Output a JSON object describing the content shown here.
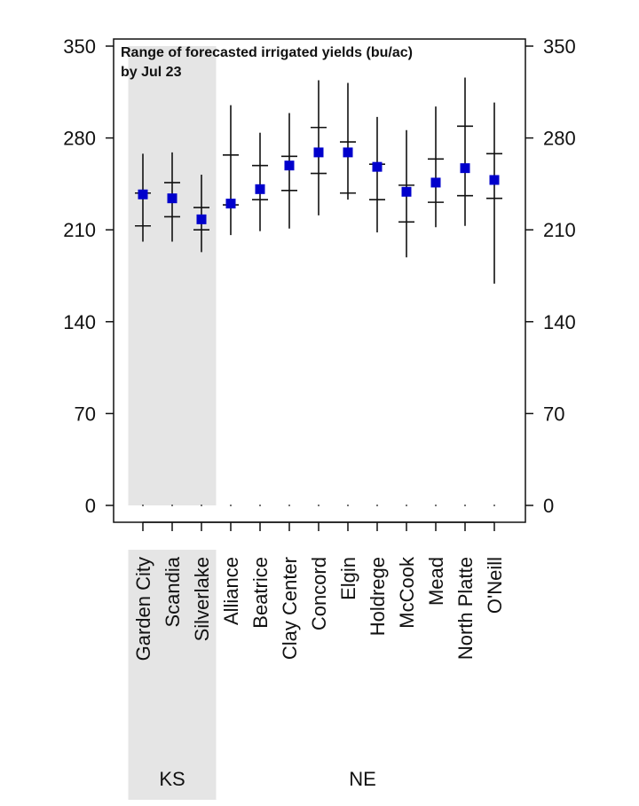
{
  "chart_data": {
    "type": "range",
    "title": "Range of forecasted irrigated yields (bu/ac)\nby Jul 23",
    "ylim": [
      0,
      350
    ],
    "yticks": [
      0,
      70,
      140,
      210,
      280,
      350
    ],
    "categories": [
      "Garden City",
      "Scandia",
      "Silverlake",
      "Alliance",
      "Beatrice",
      "Clay Center",
      "Concord",
      "Elgin",
      "Holdrege",
      "McCook",
      "Mead",
      "North Platte",
      "O'Neill"
    ],
    "groups": [
      {
        "name": "KS",
        "categories": [
          "Garden City",
          "Scandia",
          "Silverlake"
        ],
        "shaded": true
      },
      {
        "name": "NE",
        "categories": [
          "Alliance",
          "Beatrice",
          "Clay Center",
          "Concord",
          "Elgin",
          "Holdrege",
          "McCook",
          "Mead",
          "North Platte",
          "O'Neill"
        ],
        "shaded": false
      }
    ],
    "series": [
      {
        "name": "min",
        "values": [
          201,
          201,
          193,
          206,
          209,
          211,
          221,
          233,
          208,
          189,
          212,
          213,
          169
        ]
      },
      {
        "name": "p25",
        "values": [
          213,
          220,
          210,
          229,
          233,
          240,
          253,
          238,
          233,
          216,
          231,
          236,
          234
        ]
      },
      {
        "name": "median",
        "values": [
          237,
          234,
          218,
          230,
          241,
          259,
          269,
          269,
          258,
          239,
          246,
          257,
          248
        ]
      },
      {
        "name": "p75",
        "values": [
          238,
          246,
          227,
          267,
          259,
          266,
          288,
          277,
          260,
          244,
          264,
          289,
          268
        ]
      },
      {
        "name": "max",
        "values": [
          268,
          269,
          252,
          305,
          284,
          299,
          324,
          322,
          296,
          286,
          304,
          326,
          307
        ]
      }
    ],
    "colors": {
      "median_marker": "#0000cc",
      "range_line": "#111111",
      "shade": "#e5e5e5"
    },
    "grid": false
  }
}
